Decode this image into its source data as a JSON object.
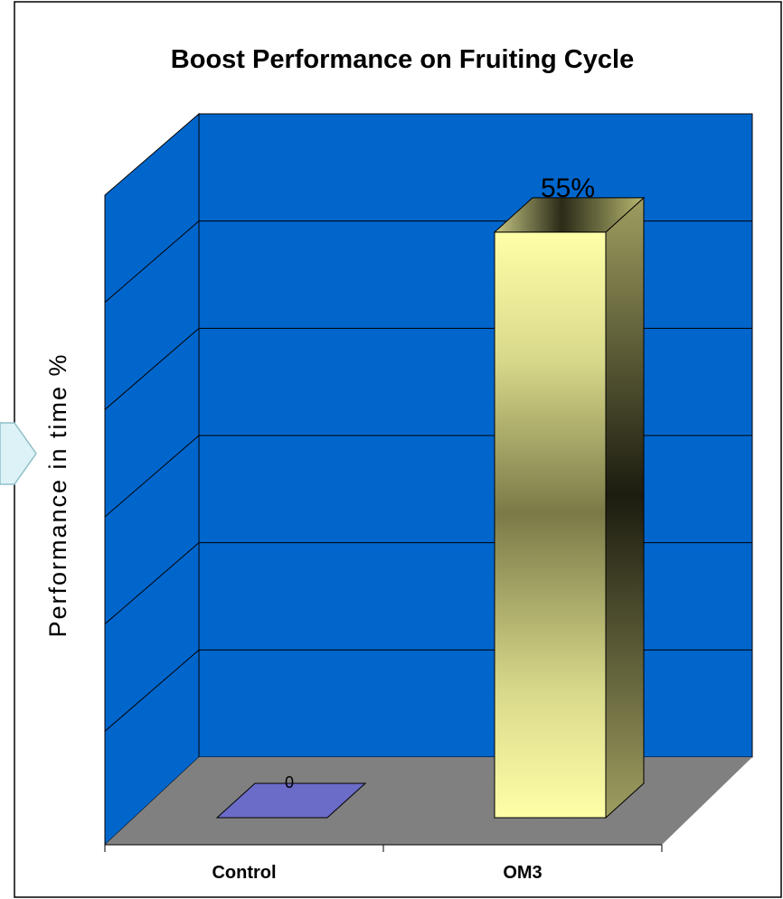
{
  "colors": {
    "back_wall": "#0066CC",
    "side_wall": "#0066CC",
    "floor": "#808080",
    "control_bar": "#6B6BC8",
    "om3_bar_light": "#FFFFA6",
    "om3_bar_dark": "#222211",
    "om3_bar_mid": "#7A7A48",
    "om3_side": "#7F7F45",
    "gridline": "#000000"
  },
  "chart_data": {
    "type": "bar",
    "title": "Boost Performance on Fruiting Cycle",
    "xlabel": "",
    "ylabel": "Performance in time %",
    "categories": [
      "Control",
      "OM3"
    ],
    "values": [
      0,
      0.55
    ],
    "data_labels": [
      "0",
      "55%"
    ],
    "ylim": [
      0,
      0.6
    ],
    "grid": true,
    "legend": "none",
    "three_d": true
  }
}
